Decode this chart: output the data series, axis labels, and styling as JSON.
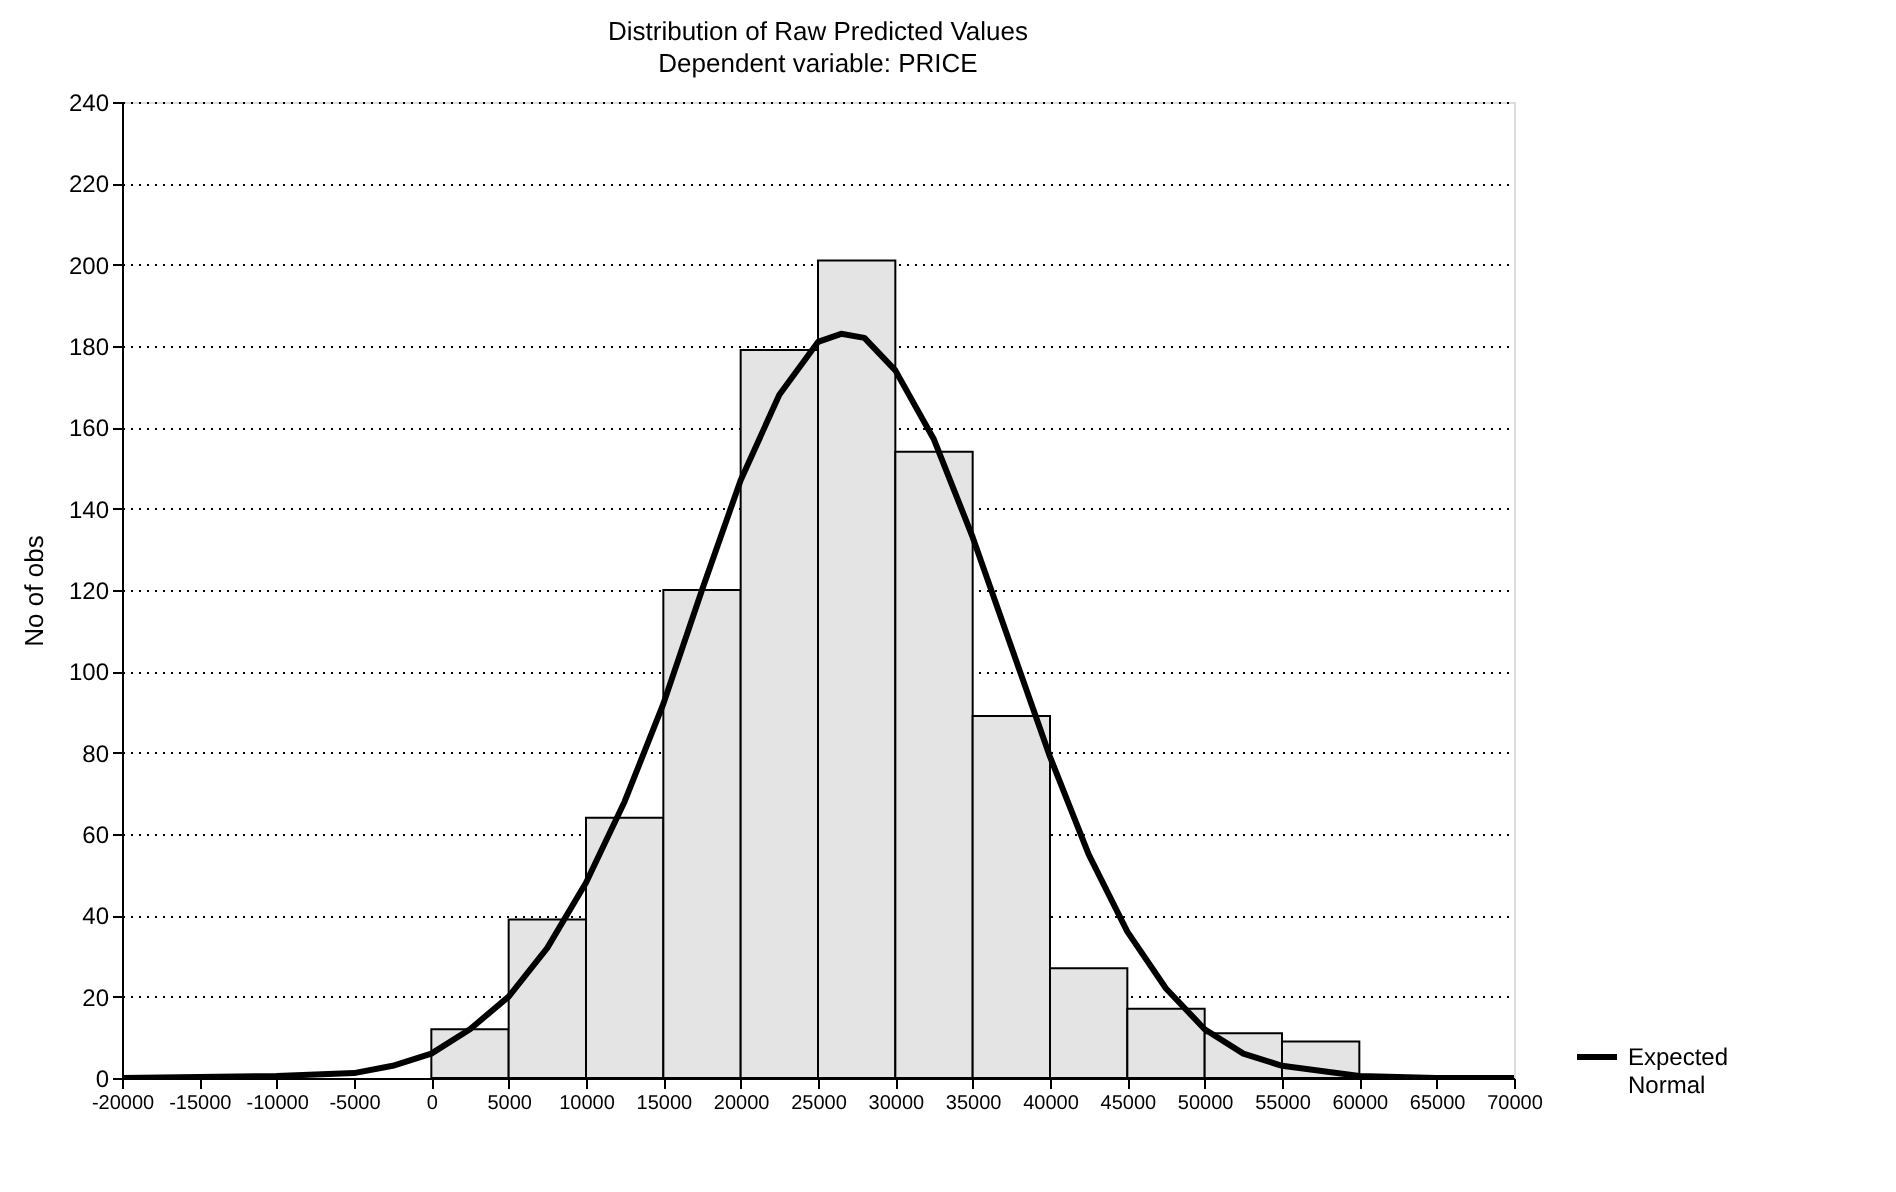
{
  "chart_data": {
    "type": "histogram",
    "title": "Distribution of Raw Predicted Values",
    "subtitle": "Dependent variable: PRICE",
    "ylabel": "No of obs",
    "bins": [
      -20000,
      -15000,
      -10000,
      -5000,
      0,
      5000,
      10000,
      15000,
      20000,
      25000,
      30000,
      35000,
      40000,
      45000,
      50000,
      55000,
      60000,
      65000,
      70000
    ],
    "values": [
      0,
      0,
      0,
      0,
      12,
      39,
      64,
      120,
      179,
      201,
      154,
      89,
      27,
      17,
      11,
      9,
      0,
      0
    ],
    "color": "#e4e4e4",
    "series": [
      {
        "name": "Expected Normal",
        "type": "line",
        "color": "#000000",
        "x": [
          -20000,
          -10000,
          -5000,
          -2500,
          0,
          2500,
          5000,
          7500,
          10000,
          12500,
          15000,
          17500,
          20000,
          22500,
          25000,
          26500,
          28000,
          30000,
          32500,
          35000,
          37500,
          40000,
          42500,
          45000,
          47500,
          50000,
          52500,
          55000,
          60000,
          65000,
          70000
        ],
        "values": [
          0,
          0.5,
          1.2,
          3,
          6,
          12,
          20,
          32,
          48,
          68,
          92,
          120,
          147,
          168,
          181,
          183,
          182,
          174,
          157,
          133,
          106,
          79,
          55,
          36,
          22,
          12,
          6,
          3,
          0.5,
          0,
          0
        ]
      }
    ],
    "xlim": [
      -20000,
      70000
    ],
    "xticks": [
      -20000,
      -15000,
      -10000,
      -5000,
      0,
      5000,
      10000,
      15000,
      20000,
      25000,
      30000,
      35000,
      40000,
      45000,
      50000,
      55000,
      60000,
      65000,
      70000
    ],
    "ylim": [
      0,
      240
    ],
    "yticks": [
      0,
      20,
      40,
      60,
      80,
      100,
      120,
      140,
      160,
      180,
      200,
      220,
      240
    ],
    "grid": "y",
    "legend": "bottom right"
  }
}
